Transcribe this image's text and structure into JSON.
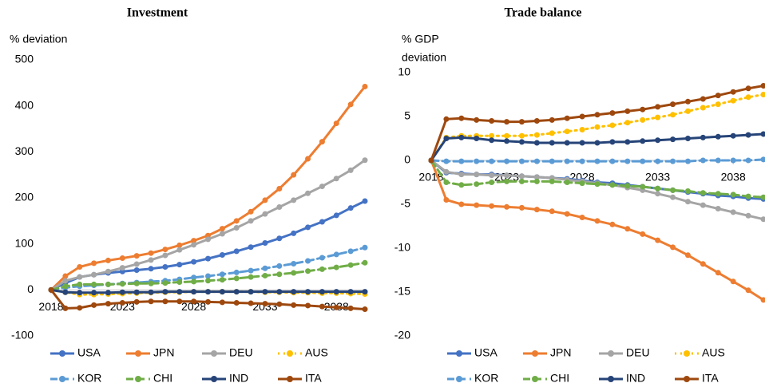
{
  "chart_data": [
    {
      "type": "line",
      "title": "Investment",
      "ylabel": "% deviation",
      "x": [
        2018,
        2019,
        2020,
        2021,
        2022,
        2023,
        2024,
        2025,
        2026,
        2027,
        2028,
        2029,
        2030,
        2031,
        2032,
        2033,
        2034,
        2035,
        2036,
        2037,
        2038,
        2039,
        2040
      ],
      "xlim": [
        2018,
        2040
      ],
      "xticks": [
        2018,
        2023,
        2028,
        2033,
        2038
      ],
      "ylim": [
        -100,
        500
      ],
      "yticks": [
        -100,
        0,
        100,
        200,
        300,
        400,
        500
      ],
      "series": [
        {
          "name": "USA",
          "color": "#4472c4",
          "dash": "solid",
          "values": [
            0,
            15,
            28,
            33,
            37,
            40,
            43,
            46,
            50,
            55,
            61,
            68,
            76,
            84,
            93,
            102,
            112,
            123,
            136,
            148,
            162,
            178,
            193
          ]
        },
        {
          "name": "JPN",
          "color": "#ed7d31",
          "dash": "solid",
          "values": [
            0,
            30,
            50,
            58,
            64,
            69,
            74,
            80,
            88,
            97,
            107,
            118,
            133,
            150,
            170,
            195,
            220,
            250,
            285,
            322,
            362,
            403,
            442
          ]
        },
        {
          "name": "DEU",
          "color": "#a5a5a5",
          "dash": "solid",
          "values": [
            0,
            20,
            28,
            33,
            40,
            48,
            56,
            65,
            75,
            87,
            98,
            110,
            122,
            135,
            150,
            165,
            180,
            195,
            210,
            225,
            242,
            260,
            282
          ]
        },
        {
          "name": "AUS",
          "color": "#ffc000",
          "dash": "dotted",
          "values": [
            0,
            -5,
            -10,
            -10,
            -9,
            -8,
            -7,
            -6,
            -5,
            -5,
            -4,
            -4,
            -4,
            -4,
            -4,
            -5,
            -5,
            -6,
            -6,
            -7,
            -7,
            -8,
            -9
          ]
        },
        {
          "name": "KOR",
          "color": "#5b9bd5",
          "dash": "dashed",
          "values": [
            0,
            5,
            8,
            10,
            12,
            14,
            16,
            18,
            20,
            23,
            27,
            30,
            34,
            38,
            42,
            47,
            52,
            57,
            63,
            70,
            77,
            84,
            92
          ]
        },
        {
          "name": "CHI",
          "color": "#70ad47",
          "dash": "dashed",
          "values": [
            0,
            8,
            12,
            12,
            12,
            13,
            14,
            14,
            15,
            17,
            18,
            20,
            22,
            25,
            28,
            31,
            34,
            37,
            41,
            45,
            49,
            54,
            59
          ]
        },
        {
          "name": "IND",
          "color": "#264478",
          "dash": "solid",
          "values": [
            0,
            -5,
            -6,
            -6,
            -6,
            -5,
            -5,
            -5,
            -4,
            -4,
            -4,
            -4,
            -4,
            -4,
            -4,
            -4,
            -4,
            -4,
            -4,
            -4,
            -4,
            -4,
            -4
          ]
        },
        {
          "name": "ITA",
          "color": "#9e480e",
          "dash": "solid",
          "values": [
            0,
            -40,
            -39,
            -33,
            -30,
            -28,
            -26,
            -25,
            -25,
            -25,
            -25,
            -26,
            -27,
            -28,
            -29,
            -30,
            -31,
            -33,
            -34,
            -36,
            -38,
            -40,
            -42
          ]
        }
      ]
    },
    {
      "type": "line",
      "title": "Trade balance",
      "ylabel": [
        "% GDP",
        "deviation"
      ],
      "x": [
        2018,
        2019,
        2020,
        2021,
        2022,
        2023,
        2024,
        2025,
        2026,
        2027,
        2028,
        2029,
        2030,
        2031,
        2032,
        2033,
        2034,
        2035,
        2036,
        2037,
        2038,
        2039,
        2040
      ],
      "xlim": [
        2018,
        2040
      ],
      "xticks": [
        2018,
        2023,
        2028,
        2033,
        2038
      ],
      "ylim": [
        -20,
        10
      ],
      "yticks": [
        -20,
        -15,
        -10,
        -5,
        0,
        5,
        10
      ],
      "series": [
        {
          "name": "USA",
          "color": "#4472c4",
          "dash": "solid",
          "values": [
            0,
            -1.4,
            -1.5,
            -1.6,
            -1.6,
            -1.7,
            -1.8,
            -1.9,
            -2.0,
            -2.1,
            -2.3,
            -2.5,
            -2.6,
            -2.8,
            -3.0,
            -3.2,
            -3.4,
            -3.6,
            -3.8,
            -4.0,
            -4.1,
            -4.3,
            -4.4
          ]
        },
        {
          "name": "JPN",
          "color": "#ed7d31",
          "dash": "solid",
          "values": [
            0,
            -4.5,
            -5.0,
            -5.1,
            -5.2,
            -5.3,
            -5.4,
            -5.6,
            -5.8,
            -6.1,
            -6.5,
            -6.9,
            -7.3,
            -7.8,
            -8.4,
            -9.1,
            -9.9,
            -10.8,
            -11.8,
            -12.8,
            -13.8,
            -14.8,
            -15.9
          ]
        },
        {
          "name": "DEU",
          "color": "#a5a5a5",
          "dash": "solid",
          "values": [
            0,
            -1.3,
            -1.6,
            -1.6,
            -1.7,
            -1.7,
            -1.8,
            -1.9,
            -2.0,
            -2.2,
            -2.4,
            -2.6,
            -2.8,
            -3.1,
            -3.4,
            -3.8,
            -4.2,
            -4.7,
            -5.1,
            -5.5,
            -5.9,
            -6.3,
            -6.7
          ]
        },
        {
          "name": "AUS",
          "color": "#ffc000",
          "dash": "dotted",
          "values": [
            0,
            2.6,
            2.8,
            2.8,
            2.8,
            2.8,
            2.8,
            2.9,
            3.1,
            3.3,
            3.5,
            3.8,
            4.0,
            4.3,
            4.6,
            4.9,
            5.2,
            5.6,
            6.0,
            6.4,
            6.8,
            7.2,
            7.5
          ]
        },
        {
          "name": "KOR",
          "color": "#5b9bd5",
          "dash": "dashed",
          "values": [
            0,
            -0.1,
            -0.1,
            -0.1,
            -0.1,
            -0.1,
            -0.1,
            -0.1,
            -0.1,
            -0.1,
            -0.1,
            -0.1,
            -0.1,
            -0.1,
            -0.1,
            -0.1,
            -0.1,
            -0.1,
            0,
            0,
            0,
            0,
            0.1
          ]
        },
        {
          "name": "CHI",
          "color": "#70ad47",
          "dash": "dashed",
          "values": [
            0,
            -2.5,
            -2.8,
            -2.7,
            -2.5,
            -2.4,
            -2.4,
            -2.4,
            -2.4,
            -2.5,
            -2.6,
            -2.7,
            -2.8,
            -2.9,
            -3.0,
            -3.2,
            -3.4,
            -3.5,
            -3.7,
            -3.8,
            -3.9,
            -4.1,
            -4.2
          ]
        },
        {
          "name": "IND",
          "color": "#264478",
          "dash": "solid",
          "values": [
            0,
            2.5,
            2.6,
            2.5,
            2.3,
            2.2,
            2.1,
            2.0,
            2.0,
            2.0,
            2.0,
            2.0,
            2.1,
            2.1,
            2.2,
            2.3,
            2.4,
            2.5,
            2.6,
            2.7,
            2.8,
            2.9,
            3.0
          ]
        },
        {
          "name": "ITA",
          "color": "#9e480e",
          "dash": "solid",
          "values": [
            0,
            4.7,
            4.8,
            4.6,
            4.5,
            4.4,
            4.4,
            4.5,
            4.6,
            4.8,
            5.0,
            5.2,
            5.4,
            5.6,
            5.8,
            6.1,
            6.4,
            6.7,
            7.0,
            7.4,
            7.8,
            8.2,
            8.5
          ]
        }
      ]
    }
  ]
}
